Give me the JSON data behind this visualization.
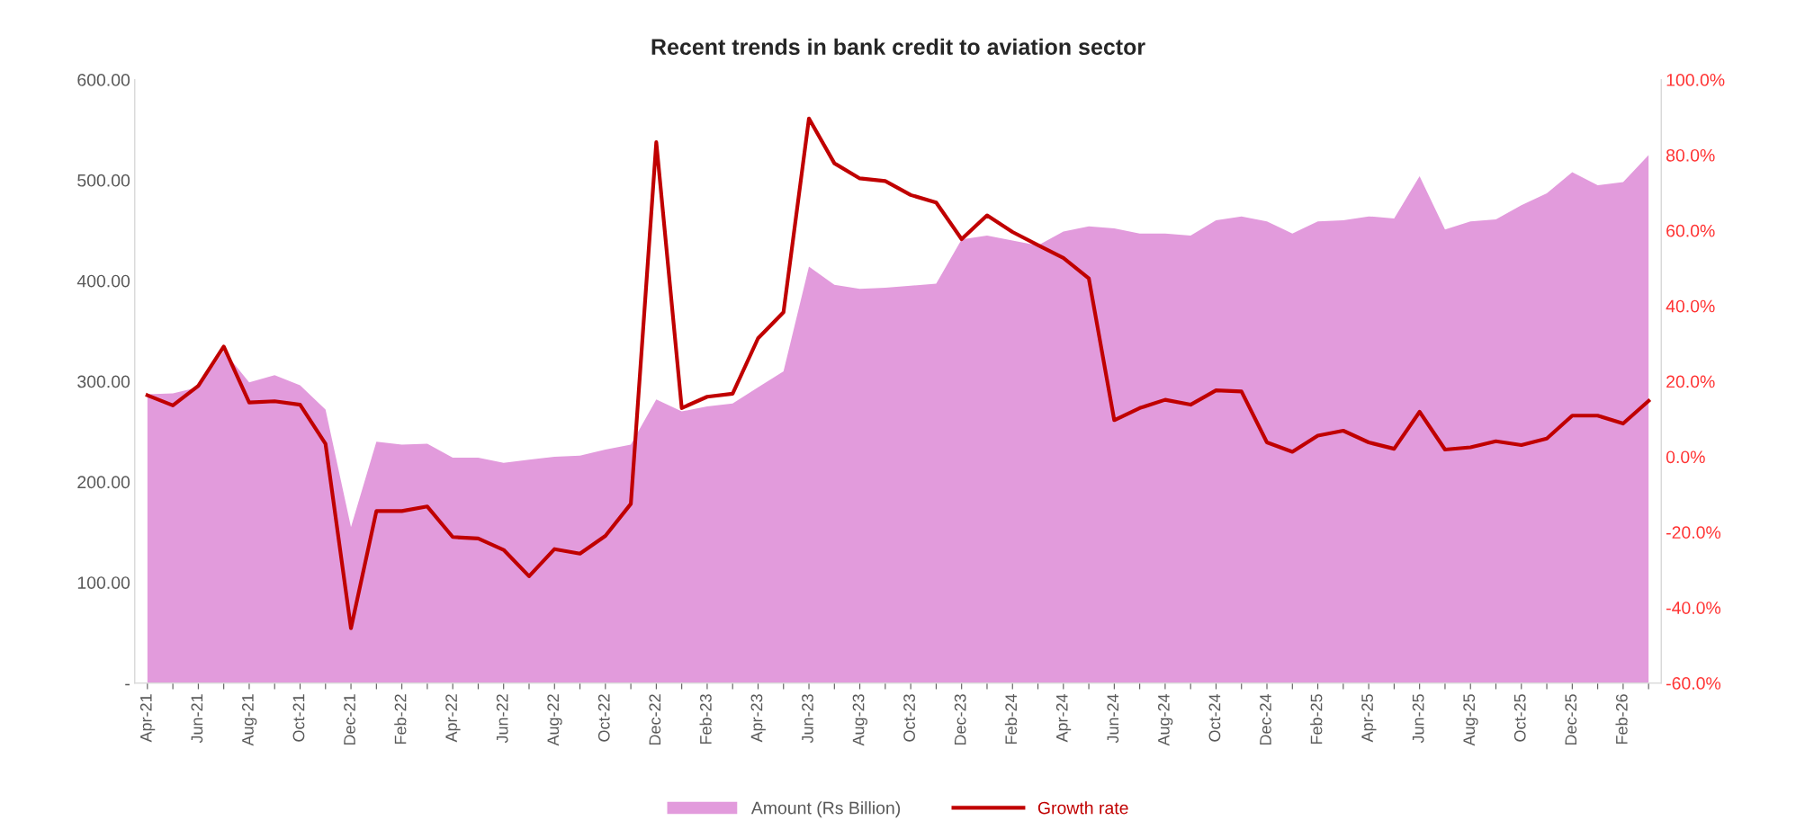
{
  "chart_data": {
    "type": "area",
    "title": "Recent trends in bank credit to aviation sector",
    "categories": [
      "Apr-21",
      null,
      "Jun-21",
      null,
      "Aug-21",
      null,
      "Oct-21",
      null,
      "Dec-21",
      null,
      "Feb-22",
      null,
      "Apr-22",
      null,
      "Jun-22",
      null,
      "Aug-22",
      null,
      "Oct-22",
      null,
      "Dec-22",
      null,
      "Feb-23",
      null,
      "Apr-23",
      null,
      "Jun-23",
      null,
      "Aug-23",
      null,
      "Oct-23",
      null,
      "Dec-23",
      null,
      "Feb-24",
      null,
      "Apr-24",
      null,
      "Jun-24",
      null,
      "Aug-24",
      null,
      "Oct-24",
      null,
      "Dec-24",
      null,
      "Feb-25",
      null,
      "Apr-25",
      null,
      "Jun-25",
      null,
      "Aug-25",
      null,
      "Oct-25",
      null,
      "Dec-25",
      null,
      "Feb-26",
      null
    ],
    "series": [
      {
        "name": "Amount (Rs Billion)",
        "color": "#e29bdc",
        "values": [
          287,
          288,
          294,
          330,
          299,
          306,
          296,
          272,
          155,
          240,
          237,
          238,
          224,
          224,
          219,
          222,
          225,
          226,
          232,
          237,
          282,
          270,
          275,
          278,
          294,
          310,
          414,
          396,
          392,
          393,
          395,
          397,
          441,
          445,
          440,
          435,
          449,
          454,
          452,
          447,
          447,
          445,
          460,
          464,
          459,
          447,
          459,
          460,
          464,
          462,
          504,
          451,
          459,
          461,
          475,
          487,
          508,
          495,
          498,
          525
        ]
      },
      {
        "name": "Growth rate",
        "type": "line",
        "axis": "y2",
        "color": "#c00000",
        "values": [
          16.3,
          13.6,
          18.8,
          29.2,
          14.4,
          14.7,
          13.8,
          3.4,
          -45.5,
          -14.4,
          -14.4,
          -13.2,
          -21.3,
          -21.7,
          -24.7,
          -31.7,
          -24.5,
          -25.7,
          -21.0,
          -12.5,
          83.4,
          12.9,
          15.9,
          16.7,
          31.4,
          38.3,
          89.7,
          77.8,
          73.8,
          73.1,
          69.4,
          67.4,
          57.7,
          64.0,
          59.6,
          56.1,
          52.7,
          47.3,
          9.7,
          12.9,
          15.1,
          13.8,
          17.6,
          17.3,
          3.8,
          1.3,
          5.6,
          6.9,
          3.8,
          2.1,
          11.9,
          1.9,
          2.5,
          4.1,
          3.1,
          4.8,
          10.9,
          10.9,
          8.8,
          14.8
        ]
      }
    ],
    "ylim": [
      0,
      600
    ],
    "yticks": [
      {
        "value": 0,
        "label": "-"
      },
      {
        "value": 100,
        "label": "100.00"
      },
      {
        "value": 200,
        "label": "200.00"
      },
      {
        "value": 300,
        "label": "300.00"
      },
      {
        "value": 400,
        "label": "400.00"
      },
      {
        "value": 500,
        "label": "500.00"
      },
      {
        "value": 600,
        "label": "600.00"
      }
    ],
    "y2lim": [
      -60,
      100
    ],
    "y2ticks": [
      {
        "value": -60,
        "label": "-60.0%"
      },
      {
        "value": -40,
        "label": "-40.0%"
      },
      {
        "value": -20,
        "label": "-20.0%"
      },
      {
        "value": 0,
        "label": "0.0%"
      },
      {
        "value": 20,
        "label": "20.0%"
      },
      {
        "value": 40,
        "label": "40.0%"
      },
      {
        "value": 60,
        "label": "60.0%"
      },
      {
        "value": 80,
        "label": "80.0%"
      },
      {
        "value": 100,
        "label": "100.0%"
      }
    ],
    "grid": false,
    "legend": "bottom"
  }
}
